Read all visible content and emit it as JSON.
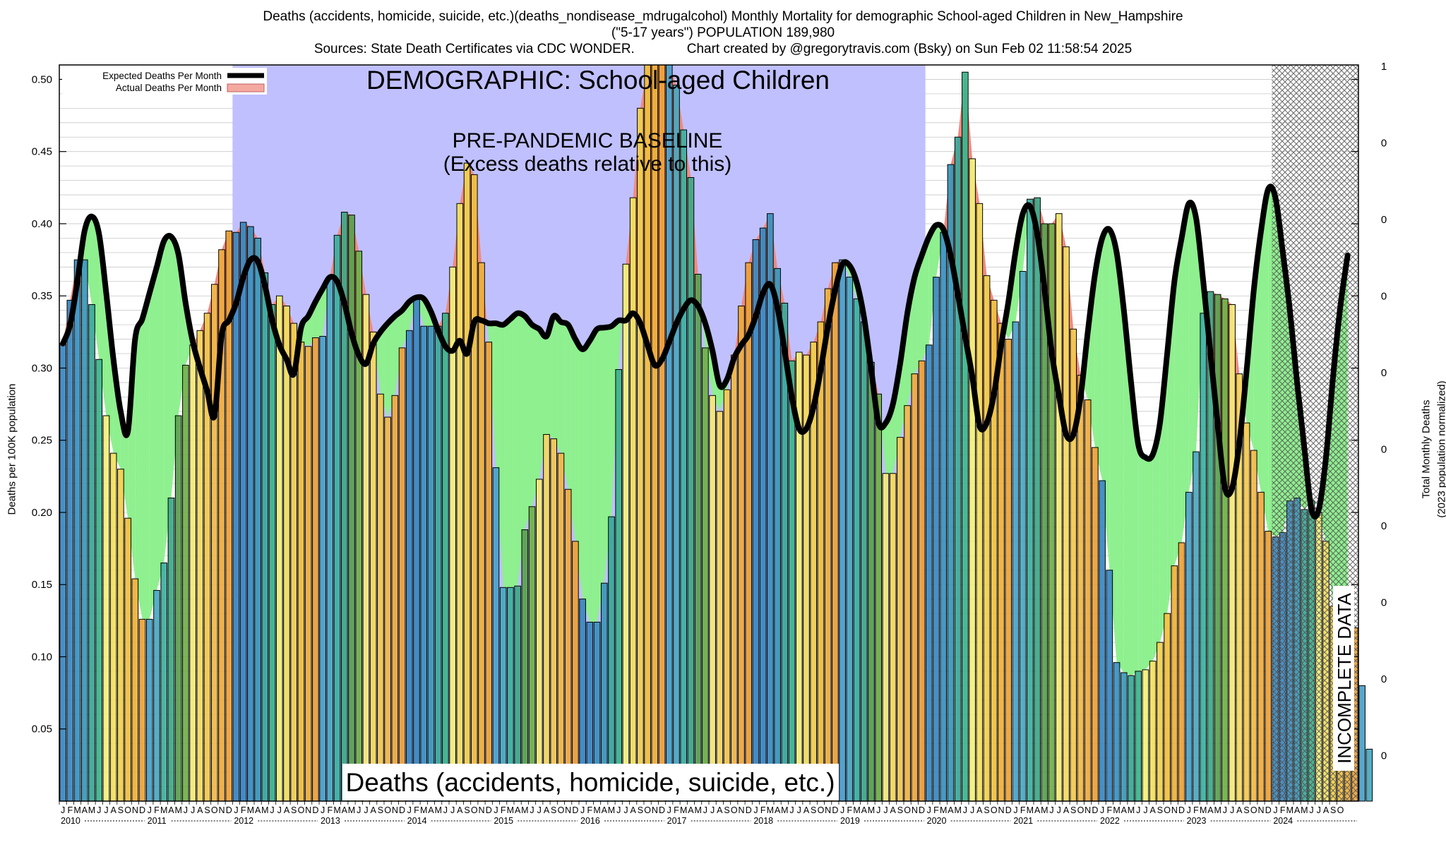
{
  "header": {
    "line1": "Deaths (accidents, homicide, suicide, etc.)(deaths_nondisease_mdrugalcohol) Monthly Mortality for demographic School-aged Children in New_Hampshire",
    "line2": "(\"5-17 years\") POPULATION 189,980",
    "line3": "Sources: State Death Certificates via CDC WONDER.              Chart created by @gregorytravis.com (Bsky) on Sun Feb 02 11:58:54 2025"
  },
  "chart_data": {
    "type": "bar",
    "ylabel": "Deaths per 100K population",
    "y2label": "Total Monthly Deaths",
    "y2label_sub": "(2023 population normalized)",
    "ylim": [
      0.0,
      0.51
    ],
    "yticks": [
      "0.05",
      "0.10",
      "0.15",
      "0.20",
      "0.25",
      "0.30",
      "0.35",
      "0.40",
      "0.45",
      "0.50"
    ],
    "y2ticks": [
      "1",
      "0",
      "0",
      "0",
      "0",
      "0",
      "0",
      "0",
      "0",
      "0"
    ],
    "grid": "horizontal",
    "legend_position": "top-left",
    "legend": [
      {
        "label": "Expected Deaths Per Month",
        "color": "#000000"
      },
      {
        "label": "Actual Deaths Per Month",
        "color": "#f4a9a0"
      }
    ],
    "annotations": {
      "demographic": "DEMOGRAPHIC: School-aged Children",
      "baseline_1": "PRE-PANDEMIC BASELINE",
      "baseline_2": "(Excess deaths relative to this)",
      "cause": "Deaths (accidents, homicide, suicide, etc.)",
      "incomplete": "INCOMPLETE DATA"
    },
    "month_letters": [
      "J",
      "F",
      "M",
      "A",
      "M",
      "J",
      "J",
      "A",
      "S",
      "O",
      "N",
      "D"
    ],
    "years": [
      "2010",
      "2011",
      "2012",
      "2013",
      "2014",
      "2015",
      "2016",
      "2017",
      "2018",
      "2019",
      "2020",
      "2021",
      "2022",
      "2023",
      "2024"
    ],
    "final_month_letters": [
      "J",
      "F",
      "M",
      "A",
      "M",
      "J",
      "J",
      "A",
      "S",
      "O"
    ],
    "baseline_years": [
      "2012",
      "2019"
    ],
    "incomplete_from": "2024",
    "actual": [
      0.317,
      0.347,
      0.375,
      0.375,
      0.344,
      0.306,
      0.267,
      0.241,
      0.23,
      0.196,
      0.154,
      0.126,
      0.126,
      0.146,
      0.165,
      0.21,
      0.267,
      0.302,
      0.316,
      0.326,
      0.338,
      0.358,
      0.382,
      0.395,
      0.394,
      0.401,
      0.398,
      0.39,
      0.366,
      0.344,
      0.35,
      0.343,
      0.331,
      0.318,
      0.315,
      0.321,
      0.322,
      0.363,
      0.392,
      0.408,
      0.406,
      0.381,
      0.351,
      0.325,
      0.282,
      0.266,
      0.281,
      0.314,
      0.326,
      0.349,
      0.329,
      0.329,
      0.329,
      0.338,
      0.37,
      0.414,
      0.442,
      0.434,
      0.373,
      0.318,
      0.231,
      0.148,
      0.148,
      0.149,
      0.188,
      0.204,
      0.223,
      0.254,
      0.251,
      0.241,
      0.216,
      0.18,
      0.14,
      0.124,
      0.124,
      0.151,
      0.197,
      0.299,
      0.372,
      0.418,
      0.48,
      0.53,
      0.52,
      0.52,
      0.52,
      0.496,
      0.465,
      0.432,
      0.365,
      0.314,
      0.281,
      0.27,
      0.285,
      0.309,
      0.343,
      0.373,
      0.389,
      0.397,
      0.407,
      0.369,
      0.345,
      0.305,
      0.311,
      0.309,
      0.318,
      0.332,
      0.355,
      0.373,
      0.375,
      0.363,
      0.348,
      0.332,
      0.304,
      0.282,
      0.227,
      0.227,
      0.252,
      0.274,
      0.296,
      0.305,
      0.316,
      0.363,
      0.394,
      0.441,
      0.46,
      0.505,
      0.445,
      0.414,
      0.364,
      0.347,
      0.331,
      0.32,
      0.332,
      0.367,
      0.417,
      0.418,
      0.4,
      0.4,
      0.407,
      0.384,
      0.327,
      0.295,
      0.278,
      0.245,
      0.222,
      0.16,
      0.096,
      0.089,
      0.087,
      0.09,
      0.091,
      0.097,
      0.11,
      0.13,
      0.163,
      0.179,
      0.214,
      0.242,
      0.338,
      0.353,
      0.351,
      0.348,
      0.344,
      0.296,
      0.262,
      0.243,
      0.214,
      0.187,
      0.183,
      0.186,
      0.208,
      0.21,
      0.202,
      0.208,
      0.2,
      0.18,
      0.135,
      0.12,
      0.13,
      0.12,
      0.08,
      0.036
    ],
    "expected": [
      0.317,
      0.33,
      0.36,
      0.395,
      0.405,
      0.393,
      0.352,
      0.306,
      0.27,
      0.256,
      0.32,
      0.334,
      0.352,
      0.37,
      0.388,
      0.391,
      0.379,
      0.345,
      0.318,
      0.3,
      0.284,
      0.267,
      0.323,
      0.333,
      0.345,
      0.363,
      0.375,
      0.374,
      0.357,
      0.333,
      0.316,
      0.306,
      0.296,
      0.328,
      0.336,
      0.346,
      0.355,
      0.363,
      0.36,
      0.345,
      0.324,
      0.309,
      0.303,
      0.317,
      0.325,
      0.331,
      0.336,
      0.34,
      0.346,
      0.349,
      0.348,
      0.339,
      0.326,
      0.315,
      0.312,
      0.319,
      0.31,
      0.332,
      0.333,
      0.331,
      0.331,
      0.33,
      0.334,
      0.338,
      0.336,
      0.33,
      0.327,
      0.322,
      0.336,
      0.332,
      0.33,
      0.32,
      0.313,
      0.319,
      0.327,
      0.328,
      0.329,
      0.333,
      0.333,
      0.338,
      0.331,
      0.316,
      0.302,
      0.306,
      0.318,
      0.331,
      0.341,
      0.347,
      0.343,
      0.331,
      0.312,
      0.288,
      0.292,
      0.307,
      0.316,
      0.323,
      0.336,
      0.352,
      0.358,
      0.342,
      0.312,
      0.28,
      0.258,
      0.258,
      0.273,
      0.299,
      0.329,
      0.354,
      0.372,
      0.371,
      0.359,
      0.335,
      0.299,
      0.262,
      0.262,
      0.275,
      0.303,
      0.338,
      0.363,
      0.378,
      0.391,
      0.399,
      0.396,
      0.378,
      0.351,
      0.322,
      0.294,
      0.26,
      0.262,
      0.282,
      0.316,
      0.346,
      0.381,
      0.407,
      0.412,
      0.393,
      0.355,
      0.311,
      0.281,
      0.254,
      0.254,
      0.28,
      0.325,
      0.365,
      0.39,
      0.396,
      0.38,
      0.34,
      0.29,
      0.247,
      0.238,
      0.24,
      0.262,
      0.31,
      0.36,
      0.39,
      0.414,
      0.404,
      0.36,
      0.31,
      0.261,
      0.217,
      0.217,
      0.248,
      0.298,
      0.354,
      0.395,
      0.424,
      0.418,
      0.381,
      0.34,
      0.29,
      0.245,
      0.202,
      0.202,
      0.238,
      0.295,
      0.343,
      0.378
    ]
  }
}
